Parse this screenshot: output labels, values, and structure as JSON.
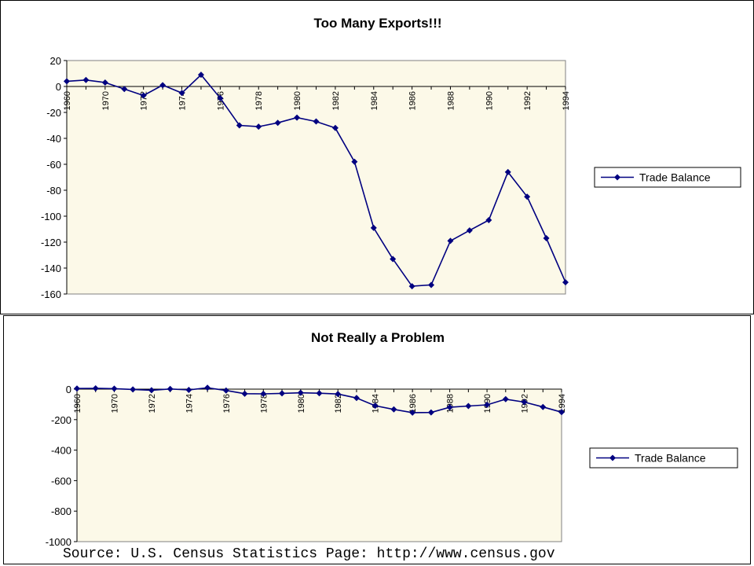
{
  "colors": {
    "plot_bg": "#fcf9e8",
    "line": "#000080",
    "axis": "#808080",
    "frame": "#000000"
  },
  "source_text": "Source: U.S. Census Statistics Page: http://www.census.gov",
  "chart_data": [
    {
      "type": "line",
      "title": "Too Many Exports!!!",
      "xlabel": "",
      "ylabel": "",
      "x": [
        1960,
        1969,
        1970,
        1971,
        1972,
        1973,
        1974,
        1975,
        1976,
        1977,
        1978,
        1979,
        1980,
        1981,
        1982,
        1983,
        1984,
        1985,
        1986,
        1987,
        1988,
        1989,
        1990,
        1991,
        1992,
        1993,
        1994
      ],
      "x_tick_labels": [
        "1960",
        "1970",
        "1972",
        "1974",
        "1976",
        "1978",
        "1980",
        "1982",
        "1984",
        "1986",
        "1988",
        "1990",
        "1992",
        "1994"
      ],
      "series": [
        {
          "name": "Trade Balance",
          "values": [
            4,
            5,
            3,
            -2,
            -7,
            1,
            -5,
            9,
            -9,
            -30,
            -31,
            -28,
            -24,
            -27,
            -32,
            -58,
            -109,
            -133,
            -154,
            -153,
            -119,
            -111,
            -103,
            -66,
            -85,
            -117,
            -151
          ]
        }
      ],
      "ylim": [
        -160,
        20
      ],
      "y_ticks": [
        20,
        0,
        -20,
        -40,
        -60,
        -80,
        -100,
        -120,
        -140,
        -160
      ],
      "grid": false,
      "legend": "right"
    },
    {
      "type": "line",
      "title": "Not Really a Problem",
      "xlabel": "",
      "ylabel": "",
      "x": [
        1960,
        1969,
        1970,
        1971,
        1972,
        1973,
        1974,
        1975,
        1976,
        1977,
        1978,
        1979,
        1980,
        1981,
        1982,
        1983,
        1984,
        1985,
        1986,
        1987,
        1988,
        1989,
        1990,
        1991,
        1992,
        1993,
        1994
      ],
      "x_tick_labels": [
        "1960",
        "1970",
        "1972",
        "1974",
        "1976",
        "1978",
        "1980",
        "1982",
        "1984",
        "1986",
        "1988",
        "1990",
        "1992",
        "1994"
      ],
      "series": [
        {
          "name": "Trade Balance",
          "values": [
            4,
            5,
            3,
            -2,
            -7,
            1,
            -5,
            9,
            -9,
            -30,
            -31,
            -28,
            -24,
            -27,
            -32,
            -58,
            -109,
            -133,
            -154,
            -153,
            -119,
            -111,
            -103,
            -66,
            -85,
            -117,
            -151
          ]
        }
      ],
      "ylim": [
        -1000,
        0
      ],
      "y_ticks": [
        0,
        -200,
        -400,
        -600,
        -800,
        -1000
      ],
      "grid": false,
      "legend": "right"
    }
  ]
}
